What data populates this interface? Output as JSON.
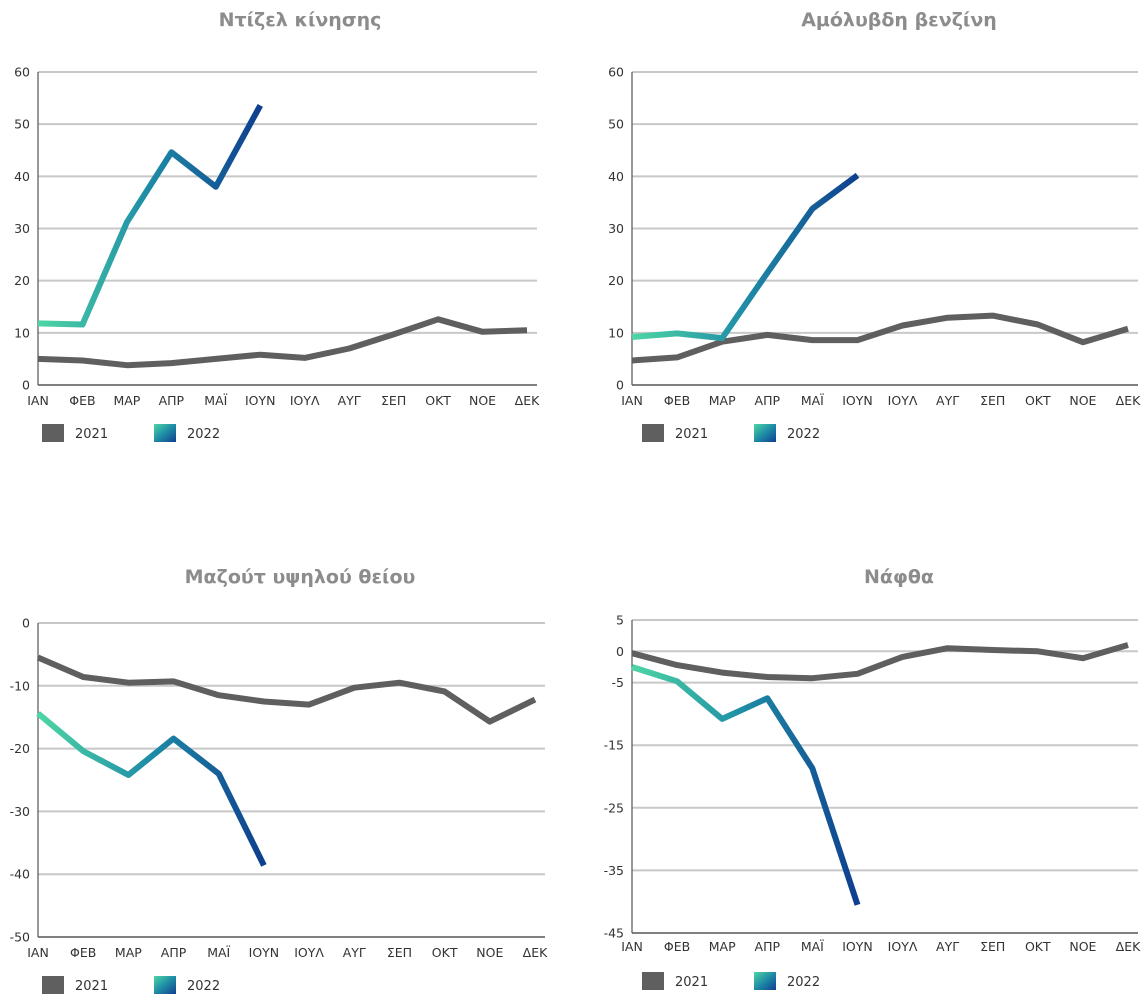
{
  "chart_data": [
    {
      "type": "line",
      "title": "Ντίζελ κίνησης",
      "categories": [
        "ΙΑΝ",
        "ΦΕΒ",
        "ΜΑΡ",
        "ΑΠΡ",
        "ΜΑΪ",
        "ΙΟΥΝ",
        "ΙΟΥΛ",
        "ΑΥΓ",
        "ΣΕΠ",
        "ΟΚΤ",
        "ΝΟΕ",
        "ΔΕΚ"
      ],
      "ylim": [
        0,
        60
      ],
      "yticks": [
        0,
        10,
        20,
        30,
        40,
        50,
        60
      ],
      "grid": true,
      "legend": "bottom-left",
      "series": [
        {
          "name": "2021",
          "color": "#5f5f5f",
          "values": [
            5,
            4.7,
            3.8,
            4.2,
            5,
            5.8,
            5.2,
            7,
            9.7,
            12.6,
            10.2,
            10.5
          ]
        },
        {
          "name": "2022",
          "color": "gradient:#4ed6a4-#1e8ca6-#0f3f8f",
          "values": [
            11.8,
            11.6,
            31.2,
            44.6,
            38,
            53.6,
            null,
            null,
            null,
            null,
            null,
            null
          ]
        }
      ]
    },
    {
      "type": "line",
      "title": "Αμόλυβδη βενζίνη",
      "categories": [
        "ΙΑΝ",
        "ΦΕΒ",
        "ΜΑΡ",
        "ΑΠΡ",
        "ΜΑΪ",
        "ΙΟΥΝ",
        "ΙΟΥΛ",
        "ΑΥΓ",
        "ΣΕΠ",
        "ΟΚΤ",
        "ΝΟΕ",
        "ΔΕΚ"
      ],
      "ylim": [
        0,
        60
      ],
      "yticks": [
        0,
        10,
        20,
        30,
        40,
        50,
        60
      ],
      "grid": true,
      "legend": "bottom-left",
      "series": [
        {
          "name": "2021",
          "color": "#5f5f5f",
          "values": [
            4.7,
            5.3,
            8.3,
            9.6,
            8.6,
            8.6,
            11.4,
            12.9,
            13.3,
            11.6,
            8.2,
            10.8
          ]
        },
        {
          "name": "2022",
          "color": "gradient:#4ed6a4-#1e8ca6-#0f3f8f",
          "values": [
            9.2,
            9.9,
            9,
            21.5,
            33.8,
            40.2,
            null,
            null,
            null,
            null,
            null,
            null
          ]
        }
      ]
    },
    {
      "type": "line",
      "title": "Μαζούτ υψηλού θείου",
      "categories": [
        "ΙΑΝ",
        "ΦΕΒ",
        "ΜΑΡ",
        "ΑΠΡ",
        "ΜΑΪ",
        "ΙΟΥΝ",
        "ΙΟΥΛ",
        "ΑΥΓ",
        "ΣΕΠ",
        "ΟΚΤ",
        "ΝΟΕ",
        "ΔΕΚ"
      ],
      "ylim": [
        -50,
        0
      ],
      "yticks": [
        0,
        -10,
        -20,
        -30,
        -40,
        -50
      ],
      "grid": true,
      "legend": "bottom-left",
      "series": [
        {
          "name": "2021",
          "color": "#5f5f5f",
          "values": [
            -5.5,
            -8.6,
            -9.5,
            -9.3,
            -11.5,
            -12.5,
            -13,
            -10.3,
            -9.5,
            -10.9,
            -15.7,
            -12.2
          ]
        },
        {
          "name": "2022",
          "color": "gradient:#4ed6a4-#1e8ca6-#0f3f8f",
          "values": [
            -14.4,
            -20.4,
            -24.2,
            -18.4,
            -24,
            -38.6,
            null,
            null,
            null,
            null,
            null,
            null
          ]
        }
      ]
    },
    {
      "type": "line",
      "title": "Νάφθα",
      "categories": [
        "ΙΑΝ",
        "ΦΕΒ",
        "ΜΑΡ",
        "ΑΠΡ",
        "ΜΑΪ",
        "ΙΟΥΝ",
        "ΙΟΥΛ",
        "ΑΥΓ",
        "ΣΕΠ",
        "ΟΚΤ",
        "ΝΟΕ",
        "ΔΕΚ"
      ],
      "ylim": [
        -45,
        5
      ],
      "yticks": [
        5,
        0,
        -5,
        -15,
        -25,
        -35,
        -45
      ],
      "grid": true,
      "legend": "bottom-left",
      "series": [
        {
          "name": "2021",
          "color": "#5f5f5f",
          "values": [
            -0.3,
            -2.2,
            -3.4,
            -4.1,
            -4.3,
            -3.6,
            -0.9,
            0.5,
            0.2,
            0,
            -1.1,
            1
          ]
        },
        {
          "name": "2022",
          "color": "gradient:#4ed6a4-#1e8ca6-#0f3f8f",
          "values": [
            -2.5,
            -4.8,
            -10.8,
            -7.5,
            -18.7,
            -40.5,
            null,
            null,
            null,
            null,
            null,
            null
          ]
        }
      ]
    }
  ]
}
